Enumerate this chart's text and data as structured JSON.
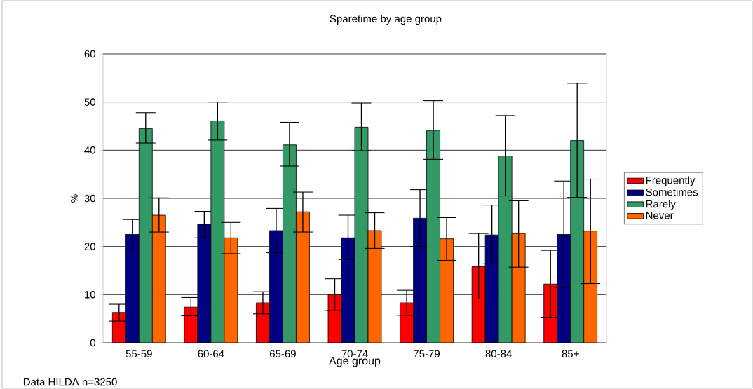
{
  "chart_data": {
    "type": "bar",
    "title": "Sparetime by age group",
    "xlabel": "Age group",
    "ylabel": "%",
    "annotations": [
      "Data HILDA  n=3250"
    ],
    "categories": [
      "55-59",
      "60-64",
      "65-69",
      "70-74",
      "75-79",
      "80-84",
      "85+"
    ],
    "series": [
      {
        "name": "Frequently",
        "color": "#ff0000",
        "values": [
          6.3,
          7.4,
          8.3,
          10.0,
          8.3,
          15.8,
          12.2
        ],
        "errors": [
          [
            4.5,
            8.0
          ],
          [
            5.6,
            9.4
          ],
          [
            6.0,
            10.6
          ],
          [
            6.7,
            13.3
          ],
          [
            5.7,
            10.9
          ],
          [
            9.1,
            22.7
          ],
          [
            5.3,
            19.2
          ]
        ]
      },
      {
        "name": "Sometimes",
        "color": "#000080",
        "values": [
          22.5,
          24.6,
          23.3,
          21.8,
          25.9,
          22.4,
          22.5
        ],
        "errors": [
          [
            19.3,
            25.6
          ],
          [
            21.8,
            27.3
          ],
          [
            18.7,
            27.9
          ],
          [
            17.3,
            26.5
          ],
          [
            20.0,
            31.8
          ],
          [
            16.4,
            28.6
          ],
          [
            11.5,
            33.6
          ]
        ]
      },
      {
        "name": "Rarely",
        "color": "#339966",
        "values": [
          44.5,
          46.1,
          41.1,
          44.8,
          44.1,
          38.8,
          42.0
        ],
        "errors": [
          [
            41.5,
            47.8
          ],
          [
            42.1,
            50.0
          ],
          [
            36.7,
            45.8
          ],
          [
            39.9,
            49.8
          ],
          [
            38.1,
            50.3
          ],
          [
            30.5,
            47.2
          ],
          [
            30.2,
            53.9
          ]
        ]
      },
      {
        "name": "Never",
        "color": "#ff6600",
        "values": [
          26.5,
          21.8,
          27.2,
          23.3,
          21.6,
          22.7,
          23.2
        ],
        "errors": [
          [
            23.0,
            30.1
          ],
          [
            18.5,
            25.0
          ],
          [
            23.0,
            31.3
          ],
          [
            19.6,
            27.0
          ],
          [
            17.1,
            26.0
          ],
          [
            15.7,
            29.5
          ],
          [
            12.3,
            34.0
          ]
        ]
      }
    ],
    "ylim": [
      0,
      60
    ],
    "yticks": [
      0,
      10,
      20,
      30,
      40,
      50,
      60
    ],
    "grid": "y",
    "legend": "right"
  }
}
